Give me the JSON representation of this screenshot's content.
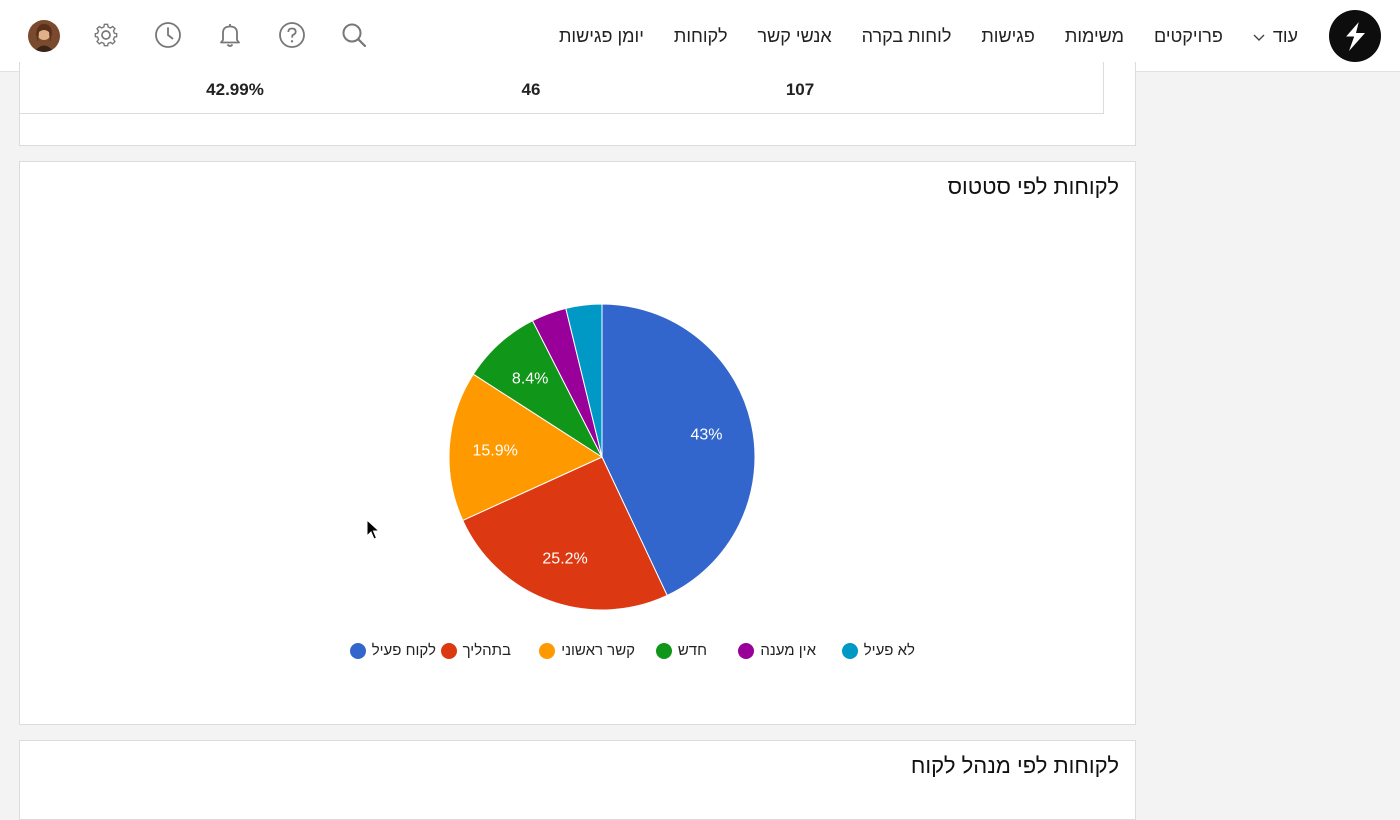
{
  "header": {
    "nav": [
      {
        "id": "meetings-calendar",
        "label": "יומן פגישות"
      },
      {
        "id": "customers",
        "label": "לקוחות"
      },
      {
        "id": "contacts",
        "label": "אנשי קשר"
      },
      {
        "id": "dashboards",
        "label": "לוחות בקרה"
      },
      {
        "id": "meetings",
        "label": "פגישות"
      },
      {
        "id": "tasks",
        "label": "משימות"
      },
      {
        "id": "projects",
        "label": "פרויקטים"
      }
    ],
    "more_label": "עוד",
    "icons": [
      "search-icon",
      "help-icon",
      "bell-icon",
      "clock-icon",
      "gear-icon",
      "avatar"
    ]
  },
  "summary": {
    "values": [
      "107",
      "46",
      "42.99%"
    ]
  },
  "status_chart": {
    "title": "לקוחות לפי סטטוס"
  },
  "chart_data": {
    "type": "pie",
    "title": "לקוחות לפי סטטוס",
    "slices": [
      {
        "name": "לקוח פעיל",
        "value": 43,
        "color": "#3366cc",
        "label": "43%"
      },
      {
        "name": "בתהליך",
        "value": 25.2,
        "color": "#dc3912",
        "label": "25.2%"
      },
      {
        "name": "קשר ראשוני",
        "value": 15.9,
        "color": "#ff9900",
        "label": "15.9%"
      },
      {
        "name": "חדש",
        "value": 8.4,
        "color": "#109618",
        "label": "8.4%"
      },
      {
        "name": "אין מענה",
        "value": 3.7,
        "color": "#990099",
        "label": ""
      },
      {
        "name": "לא פעיל",
        "value": 3.8,
        "color": "#0099c6",
        "label": ""
      }
    ],
    "legend_position": "bottom"
  },
  "manager_chart": {
    "title": "לקוחות לפי מנהל לקוח"
  }
}
